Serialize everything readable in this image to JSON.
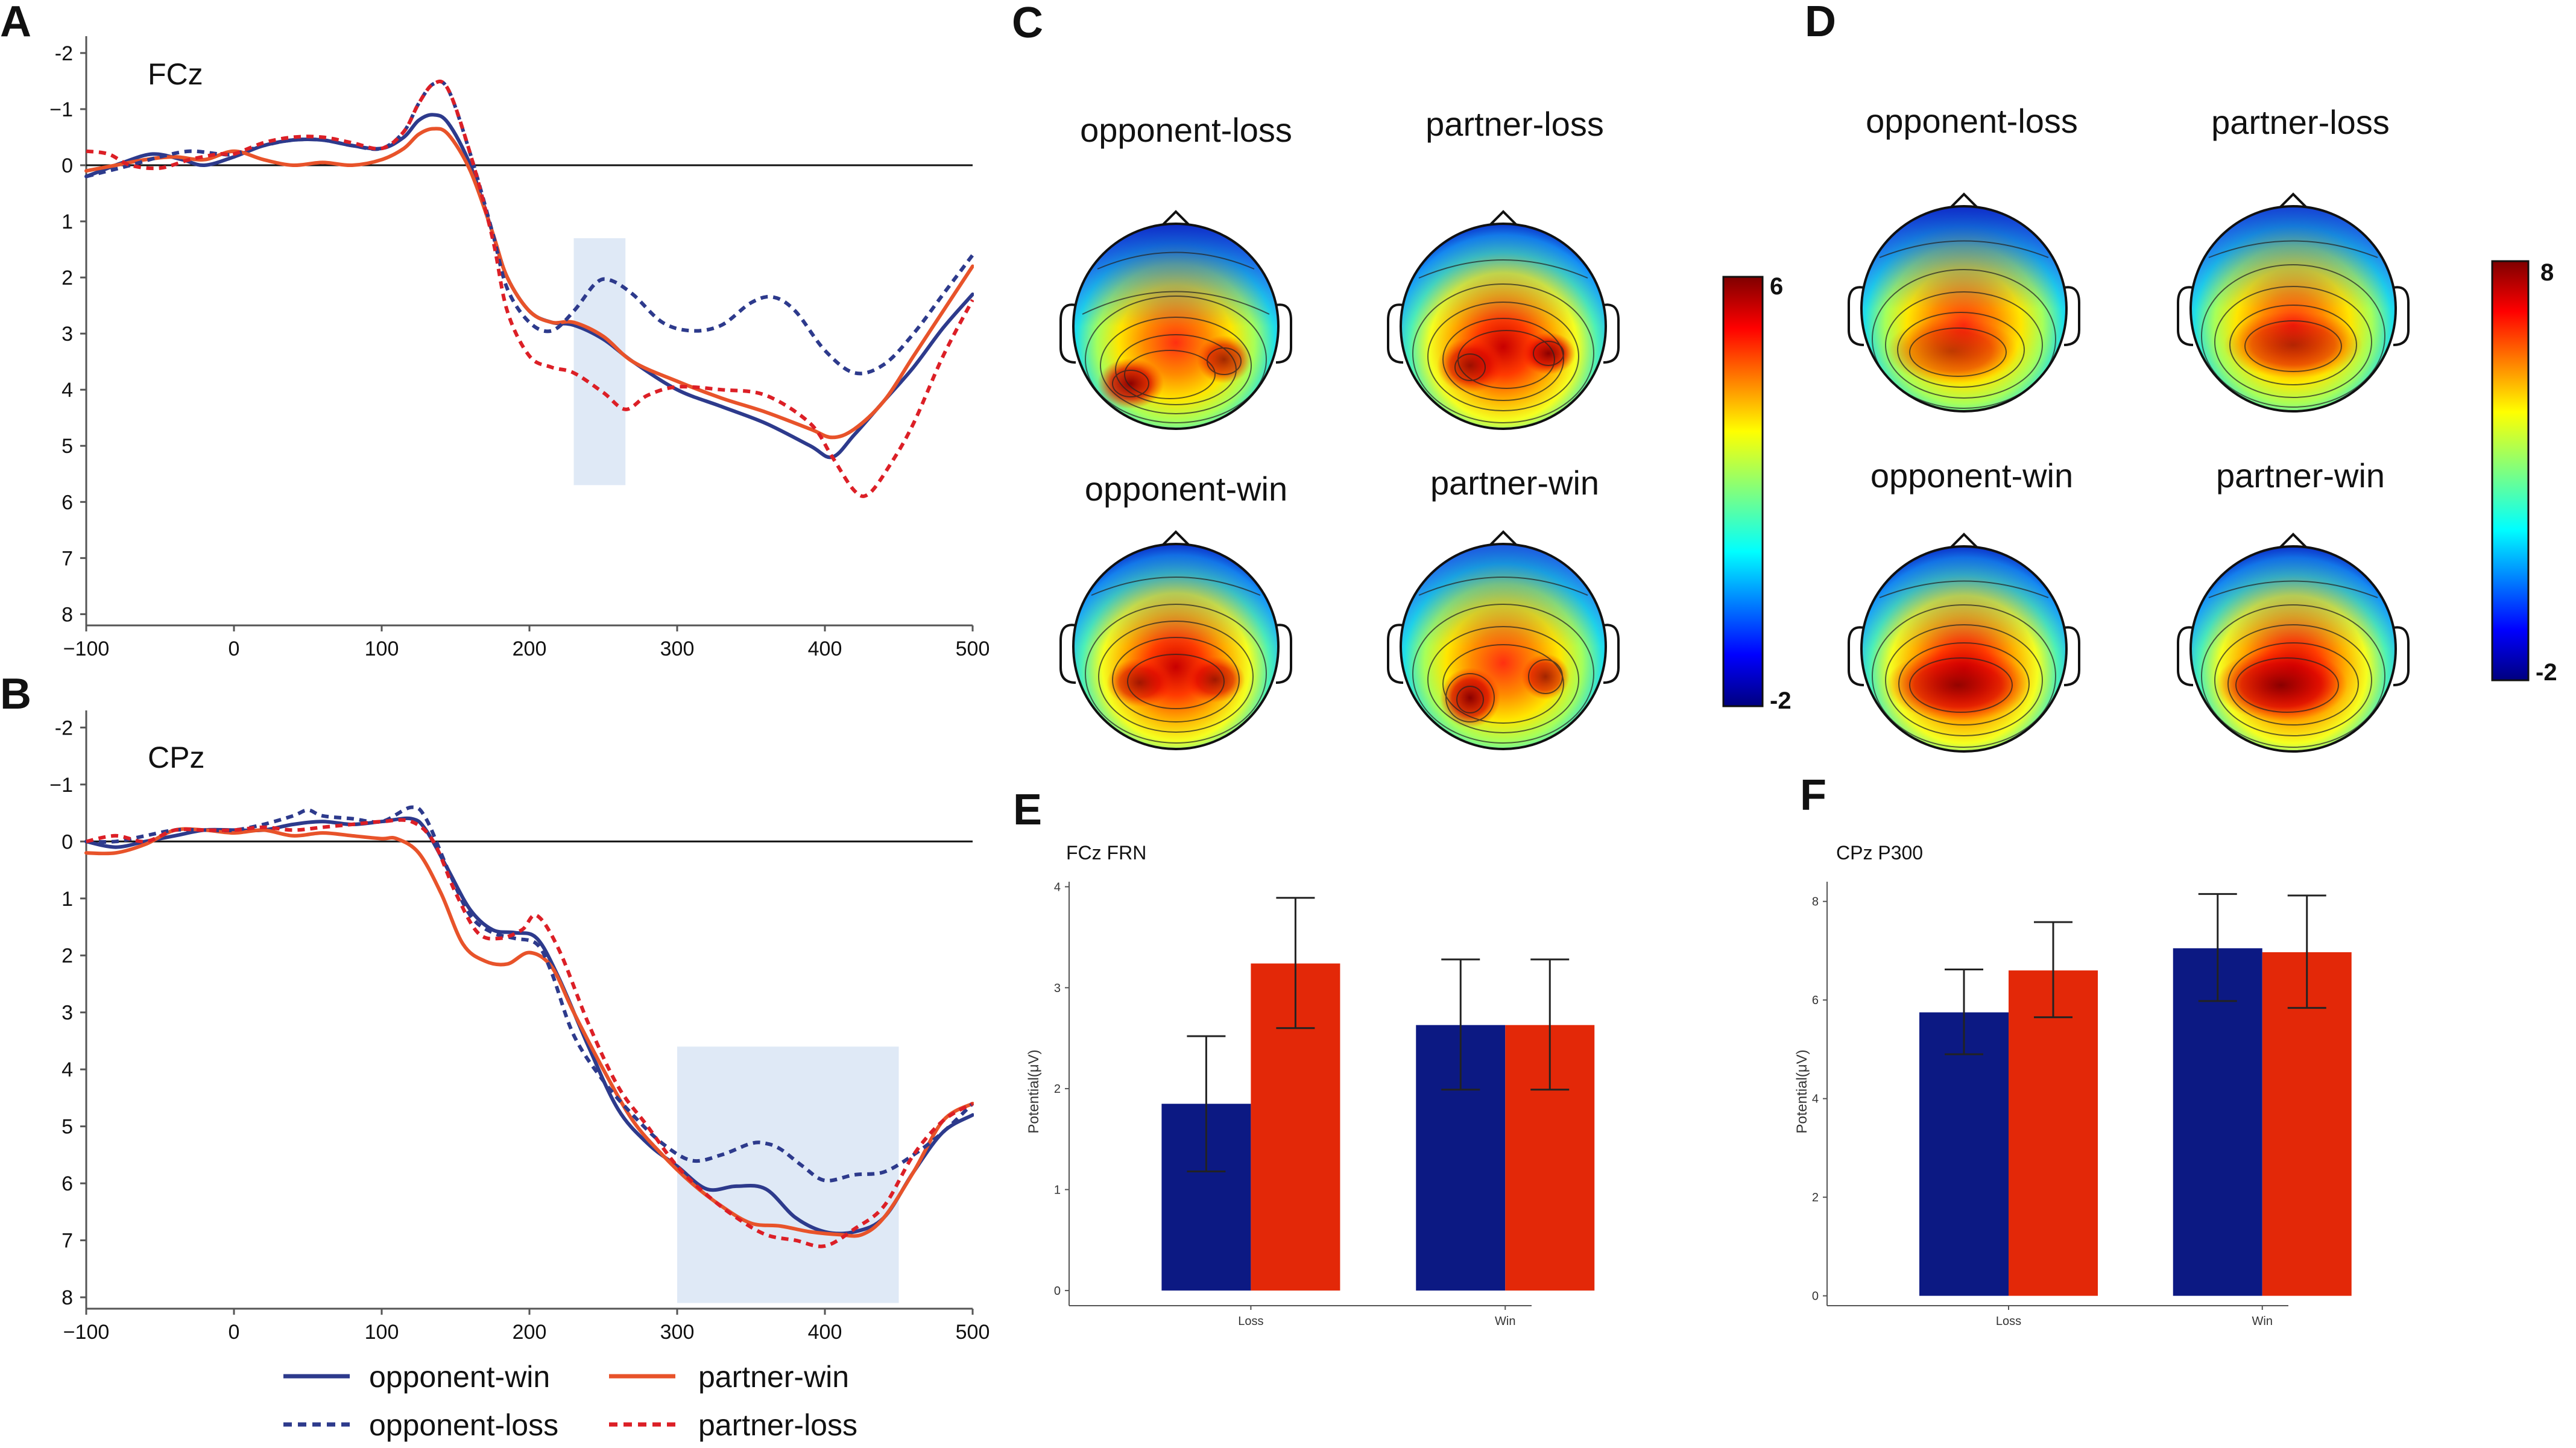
{
  "panels": {
    "A": "A",
    "B": "B",
    "C": "C",
    "D": "D",
    "E": "E",
    "F": "F"
  },
  "colors": {
    "opponent": "#2d3a8c",
    "partner": "#e8532a",
    "partner_loss": "#dc1f26",
    "bar_opponent": "#0c1983",
    "bar_partner": "#e32808",
    "highlight": "#dfe9f6"
  },
  "chart_data": [
    {
      "id": "A",
      "type": "line",
      "title": "FCz",
      "x_ticks": [
        "−100",
        "0",
        "100",
        "200",
        "300",
        "400",
        "500"
      ],
      "y_ticks": [
        "-2",
        "−1",
        "0",
        "1",
        "2",
        "3",
        "4",
        "5",
        "6",
        "7",
        "8"
      ],
      "xlim": [
        -100,
        500
      ],
      "ylim": [
        -2.3,
        8.2
      ],
      "y_inverted": true,
      "highlight": {
        "x": [
          230,
          265
        ],
        "y": [
          1.3,
          5.7
        ]
      },
      "series": [
        {
          "name": "opponent-win",
          "style": "solid",
          "color": "#2d3a8c",
          "x": [
            -100,
            -90,
            -75,
            -55,
            -35,
            -20,
            0,
            20,
            40,
            60,
            80,
            100,
            115,
            125,
            135,
            145,
            160,
            175,
            185,
            200,
            215,
            230,
            250,
            270,
            300,
            330,
            360,
            390,
            405,
            420,
            440,
            460,
            480,
            500
          ],
          "y": [
            0.2,
            0.1,
            -0.05,
            -0.2,
            -0.1,
            0,
            -0.15,
            -0.35,
            -0.45,
            -0.45,
            -0.35,
            -0.3,
            -0.5,
            -0.8,
            -0.9,
            -0.75,
            0,
            1.2,
            2,
            2.6,
            2.8,
            2.85,
            3.1,
            3.5,
            4,
            4.3,
            4.6,
            5,
            5.2,
            4.8,
            4.2,
            3.6,
            2.9,
            2.3
          ]
        },
        {
          "name": "partner-win",
          "style": "solid",
          "color": "#e8532a",
          "x": [
            -100,
            -80,
            -60,
            -40,
            -20,
            0,
            20,
            40,
            60,
            80,
            100,
            115,
            125,
            135,
            145,
            160,
            175,
            185,
            200,
            215,
            230,
            250,
            270,
            300,
            330,
            360,
            390,
            405,
            420,
            440,
            460,
            480,
            500
          ],
          "y": [
            0.1,
            0,
            -0.1,
            -0.15,
            -0.1,
            -0.25,
            -0.1,
            0,
            -0.05,
            0,
            -0.1,
            -0.3,
            -0.55,
            -0.65,
            -0.55,
            0.1,
            1.2,
            2,
            2.6,
            2.8,
            2.8,
            3.05,
            3.5,
            3.85,
            4.15,
            4.4,
            4.7,
            4.85,
            4.7,
            4.2,
            3.4,
            2.6,
            1.8
          ]
        },
        {
          "name": "opponent-loss",
          "style": "dashed",
          "color": "#2d3a8c",
          "x": [
            -100,
            -85,
            -70,
            -50,
            -30,
            -10,
            0,
            20,
            40,
            60,
            80,
            100,
            115,
            125,
            135,
            145,
            160,
            175,
            185,
            200,
            215,
            230,
            245,
            255,
            270,
            290,
            310,
            330,
            350,
            365,
            380,
            400,
            420,
            440,
            460,
            480,
            500
          ],
          "y": [
            0.2,
            0.1,
            0,
            -0.15,
            -0.25,
            -0.2,
            -0.2,
            -0.35,
            -0.45,
            -0.45,
            -0.35,
            -0.3,
            -0.6,
            -1.1,
            -1.45,
            -1.35,
            -0.2,
            1.2,
            2.2,
            2.8,
            2.95,
            2.6,
            2.1,
            2.05,
            2.3,
            2.8,
            2.95,
            2.85,
            2.45,
            2.35,
            2.6,
            3.3,
            3.7,
            3.55,
            3,
            2.3,
            1.6
          ]
        },
        {
          "name": "partner-loss",
          "style": "dashed",
          "color": "#dc1f26",
          "x": [
            -100,
            -85,
            -70,
            -50,
            -30,
            -10,
            0,
            20,
            40,
            60,
            80,
            100,
            115,
            125,
            135,
            145,
            160,
            175,
            185,
            200,
            215,
            230,
            250,
            265,
            280,
            300,
            330,
            360,
            390,
            405,
            420,
            430,
            445,
            460,
            480,
            500
          ],
          "y": [
            -0.25,
            -0.2,
            0,
            0.05,
            -0.1,
            -0.2,
            -0.2,
            -0.4,
            -0.5,
            -0.5,
            -0.4,
            -0.3,
            -0.6,
            -1.1,
            -1.45,
            -1.35,
            -0.2,
            1.3,
            2.6,
            3.4,
            3.6,
            3.7,
            4.05,
            4.35,
            4.1,
            3.95,
            4,
            4.1,
            4.6,
            5.2,
            5.8,
            5.85,
            5.3,
            4.6,
            3.4,
            2.4
          ]
        }
      ]
    },
    {
      "id": "B",
      "type": "line",
      "title": "CPz",
      "x_ticks": [
        "−100",
        "0",
        "100",
        "200",
        "300",
        "400",
        "500"
      ],
      "y_ticks": [
        "-2",
        "−1",
        "0",
        "1",
        "2",
        "3",
        "4",
        "5",
        "6",
        "7",
        "8"
      ],
      "xlim": [
        -100,
        500
      ],
      "ylim": [
        -2.3,
        8.2
      ],
      "y_inverted": true,
      "highlight": {
        "x": [
          300,
          450
        ],
        "y": [
          3.6,
          8.1
        ]
      },
      "series": [
        {
          "name": "opponent-win",
          "style": "solid",
          "color": "#2d3a8c",
          "x": [
            -100,
            -80,
            -60,
            -40,
            -20,
            0,
            20,
            40,
            60,
            80,
            100,
            120,
            130,
            145,
            160,
            175,
            190,
            205,
            220,
            240,
            260,
            280,
            300,
            320,
            340,
            360,
            380,
            400,
            420,
            440,
            460,
            480,
            500
          ],
          "y": [
            0,
            0.1,
            0,
            -0.1,
            -0.2,
            -0.2,
            -0.2,
            -0.3,
            -0.35,
            -0.3,
            -0.35,
            -0.4,
            -0.2,
            0.5,
            1.2,
            1.55,
            1.6,
            1.7,
            2.4,
            3.6,
            4.7,
            5.3,
            5.7,
            6.1,
            6.05,
            6.1,
            6.6,
            6.85,
            6.85,
            6.6,
            5.8,
            5.1,
            4.8
          ]
        },
        {
          "name": "partner-win",
          "style": "solid",
          "color": "#e8532a",
          "x": [
            -100,
            -80,
            -60,
            -40,
            -20,
            0,
            20,
            40,
            60,
            80,
            100,
            110,
            125,
            140,
            155,
            170,
            185,
            200,
            215,
            230,
            250,
            270,
            290,
            310,
            330,
            350,
            370,
            390,
            410,
            425,
            440,
            460,
            480,
            500
          ],
          "y": [
            0.2,
            0.2,
            0.05,
            -0.2,
            -0.2,
            -0.15,
            -0.2,
            -0.1,
            -0.15,
            -0.1,
            -0.05,
            -0.05,
            0.2,
            0.9,
            1.8,
            2.1,
            2.15,
            1.95,
            2.2,
            3,
            4,
            4.9,
            5.5,
            6,
            6.4,
            6.7,
            6.75,
            6.85,
            6.9,
            6.9,
            6.6,
            5.8,
            4.9,
            4.6
          ]
        },
        {
          "name": "opponent-loss",
          "style": "dashed",
          "color": "#2d3a8c",
          "x": [
            -100,
            -80,
            -60,
            -40,
            -20,
            0,
            20,
            40,
            50,
            60,
            80,
            100,
            120,
            130,
            145,
            160,
            175,
            190,
            205,
            215,
            230,
            250,
            270,
            290,
            310,
            330,
            350,
            360,
            370,
            385,
            400,
            420,
            440,
            460,
            480,
            500
          ],
          "y": [
            0,
            0,
            -0.1,
            -0.2,
            -0.2,
            -0.2,
            -0.3,
            -0.45,
            -0.55,
            -0.45,
            -0.4,
            -0.35,
            -0.6,
            -0.4,
            0.5,
            1.3,
            1.6,
            1.7,
            1.8,
            2.3,
            3.4,
            4.2,
            4.8,
            5.3,
            5.6,
            5.5,
            5.3,
            5.3,
            5.4,
            5.7,
            5.95,
            5.85,
            5.8,
            5.5,
            5.1,
            4.6
          ]
        },
        {
          "name": "partner-loss",
          "style": "dashed",
          "color": "#dc1f26",
          "x": [
            -100,
            -80,
            -60,
            -40,
            -20,
            0,
            20,
            40,
            60,
            80,
            100,
            120,
            135,
            150,
            165,
            180,
            195,
            205,
            220,
            240,
            260,
            280,
            300,
            320,
            340,
            360,
            380,
            400,
            420,
            440,
            460,
            480,
            500
          ],
          "y": [
            0,
            -0.1,
            0,
            -0.2,
            -0.2,
            -0.2,
            -0.25,
            -0.2,
            -0.25,
            -0.3,
            -0.35,
            -0.35,
            0,
            0.9,
            1.6,
            1.7,
            1.55,
            1.3,
            1.9,
            3.2,
            4.3,
            5,
            5.7,
            6.2,
            6.6,
            6.9,
            7,
            7.1,
            6.8,
            6.4,
            5.5,
            4.9,
            4.6
          ]
        }
      ]
    },
    {
      "id": "E",
      "type": "bar",
      "title": "FCz FRN",
      "ylabel": "Potential(μV)",
      "categories": [
        "Loss",
        "Win"
      ],
      "y_ticks": [
        "0",
        "1",
        "2",
        "3",
        "4"
      ],
      "ylim": [
        -0.15,
        4.05
      ],
      "series": [
        {
          "name": "opponent",
          "color": "#0c1983",
          "values": [
            1.85,
            2.63
          ],
          "err_low": [
            1.18,
            1.99
          ],
          "err_high": [
            2.52,
            3.28
          ]
        },
        {
          "name": "partner",
          "color": "#e32808",
          "values": [
            3.24,
            2.63
          ],
          "err_low": [
            2.6,
            1.99
          ],
          "err_high": [
            3.89,
            3.28
          ]
        }
      ]
    },
    {
      "id": "F",
      "type": "bar",
      "title": "CPz P300",
      "ylabel": "Potential(μV)",
      "categories": [
        "Loss",
        "Win"
      ],
      "y_ticks": [
        "0",
        "2",
        "4",
        "6",
        "8"
      ],
      "ylim": [
        -0.2,
        8.4
      ],
      "series": [
        {
          "name": "opponent",
          "color": "#0c1983",
          "values": [
            5.75,
            7.05
          ],
          "err_low": [
            4.9,
            5.98
          ],
          "err_high": [
            6.62,
            8.15
          ]
        },
        {
          "name": "partner",
          "color": "#e32808",
          "values": [
            6.6,
            6.97
          ],
          "err_low": [
            5.65,
            5.84
          ],
          "err_high": [
            7.58,
            8.12
          ]
        }
      ]
    }
  ],
  "topomaps": {
    "C": {
      "colorbar": {
        "max": "6",
        "min": "-2"
      },
      "maps": [
        {
          "label": "opponent-loss"
        },
        {
          "label": "partner-loss"
        },
        {
          "label": "opponent-win"
        },
        {
          "label": "partner-win"
        }
      ]
    },
    "D": {
      "colorbar": {
        "max": "8",
        "min": "-2"
      },
      "maps": [
        {
          "label": "opponent-loss"
        },
        {
          "label": "partner-loss"
        },
        {
          "label": "opponent-win"
        },
        {
          "label": "partner-win"
        }
      ]
    }
  },
  "legend": [
    {
      "label": "opponent-win",
      "style": "solid",
      "color": "#2d3a8c"
    },
    {
      "label": "partner-win",
      "style": "solid",
      "color": "#e8532a"
    },
    {
      "label": "opponent-loss",
      "style": "dashed",
      "color": "#2d3a8c"
    },
    {
      "label": "partner-loss",
      "style": "dashed",
      "color": "#dc1f26"
    }
  ]
}
